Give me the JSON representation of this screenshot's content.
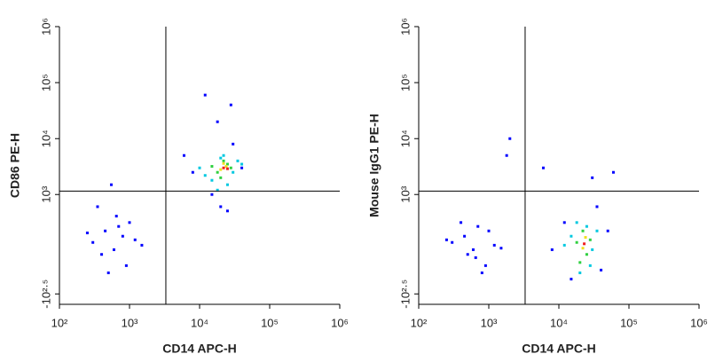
{
  "chart_data": [
    {
      "type": "scatter",
      "xlabel": "CD14 APC-H",
      "ylabel": "CD86 PE-H",
      "xscale": "log",
      "yscale": "biexponential",
      "xlim": [
        100,
        1000000
      ],
      "ylim": [
        -500,
        1000000
      ],
      "xticks": [
        {
          "value": 100,
          "label": "10²"
        },
        {
          "value": 1000,
          "label": "10³"
        },
        {
          "value": 10000,
          "label": "10⁴"
        },
        {
          "value": 100000,
          "label": "10⁵"
        },
        {
          "value": 1000000,
          "label": "10⁶"
        }
      ],
      "yticks": [
        {
          "value": -316.2,
          "label": "-10²·⁵"
        },
        {
          "value": 1000,
          "label": "10³"
        },
        {
          "value": 10000,
          "label": "10⁴"
        },
        {
          "value": 100000,
          "label": "10⁵"
        },
        {
          "value": 1000000,
          "label": "10⁶"
        }
      ],
      "gates": {
        "x": 3300,
        "y": 1150
      },
      "series": [
        {
          "color": "#0000ff",
          "x": [
            300,
            450,
            600,
            800,
            1000,
            500,
            700,
            1200,
            250,
            900,
            400,
            650,
            1500,
            350,
            550,
            18000,
            30000,
            12000,
            25000,
            8000,
            15000,
            40000,
            20000,
            6000,
            28000
          ],
          "values": [
            100,
            200,
            50,
            150,
            300,
            -100,
            250,
            120,
            180,
            -50,
            20,
            400,
            80,
            600,
            1500,
            20000,
            8000,
            60000,
            500,
            2500,
            1000,
            3000,
            600,
            5000,
            40000
          ]
        },
        {
          "color": "#00c8e0",
          "x": [
            15000,
            30000,
            20000,
            10000,
            40000,
            25000,
            12000,
            35000,
            18000,
            22000
          ],
          "values": [
            1800,
            2500,
            4500,
            3000,
            3500,
            1500,
            2200,
            4000,
            1200,
            5000
          ]
        },
        {
          "color": "#30d040",
          "x": [
            18000,
            25000,
            20000,
            28000,
            15000,
            22000
          ],
          "values": [
            2500,
            3500,
            2000,
            3000,
            3200,
            4000
          ]
        },
        {
          "color": "#f0e020",
          "x": [
            20000,
            24000,
            22000
          ],
          "values": [
            2800,
            3200,
            3600
          ]
        },
        {
          "color": "#f02020",
          "x": [
            22000,
            25000
          ],
          "values": [
            3000,
            2900
          ]
        }
      ]
    },
    {
      "type": "scatter",
      "xlabel": "CD14 APC-H",
      "ylabel": "Mouse IgG1 PE-H",
      "xscale": "log",
      "yscale": "biexponential",
      "xlim": [
        100,
        1000000
      ],
      "ylim": [
        -500,
        1000000
      ],
      "xticks": [
        {
          "value": 100,
          "label": "10²"
        },
        {
          "value": 1000,
          "label": "10³"
        },
        {
          "value": 10000,
          "label": "10⁴"
        },
        {
          "value": 100000,
          "label": "10⁵"
        },
        {
          "value": 1000000,
          "label": "10⁶"
        }
      ],
      "yticks": [
        {
          "value": -316.2,
          "label": "-10²·⁵"
        },
        {
          "value": 1000,
          "label": "10³"
        },
        {
          "value": 10000,
          "label": "10⁴"
        },
        {
          "value": 100000,
          "label": "10⁵"
        },
        {
          "value": 1000000,
          "label": "10⁶"
        }
      ],
      "gates": {
        "x": 3300,
        "y": 1150
      },
      "series": [
        {
          "color": "#0000ff",
          "x": [
            300,
            450,
            600,
            800,
            1000,
            500,
            700,
            1200,
            250,
            900,
            400,
            650,
            1500,
            2000,
            1800,
            12000,
            40000,
            60000,
            15000,
            35000,
            8000,
            50000,
            30000,
            6000
          ],
          "values": [
            100,
            150,
            50,
            -100,
            200,
            20,
            250,
            80,
            120,
            -50,
            300,
            0,
            60,
            10000,
            5000,
            300,
            -80,
            2500,
            -150,
            600,
            50,
            200,
            2000,
            3000
          ]
        },
        {
          "color": "#00c8e0",
          "x": [
            15000,
            30000,
            20000,
            12000,
            35000,
            25000,
            18000,
            28000
          ],
          "values": [
            150,
            50,
            -100,
            80,
            200,
            250,
            300,
            -50
          ]
        },
        {
          "color": "#30d040",
          "x": [
            18000,
            25000,
            22000,
            20000,
            28000
          ],
          "values": [
            100,
            20,
            200,
            -30,
            120
          ]
        },
        {
          "color": "#f0e020",
          "x": [
            22000,
            24000
          ],
          "values": [
            60,
            140
          ]
        },
        {
          "color": "#f02020",
          "x": [
            23000
          ],
          "values": [
            90
          ]
        }
      ]
    }
  ]
}
